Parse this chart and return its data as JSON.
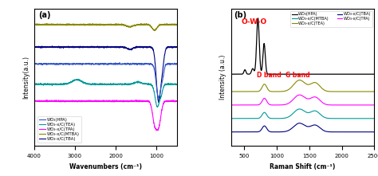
{
  "panel_a": {
    "title": "(a)",
    "xlabel": "Wavenumbers (cm⁻¹)",
    "ylabel": "Intensity(a.u.)",
    "xticks": [
      4000,
      3000,
      2000,
      1000
    ],
    "series": [
      {
        "label": "WO₃(HPA)",
        "color": "#3355cc"
      },
      {
        "label": "WO₃-x/C(TEA)",
        "color": "#009999"
      },
      {
        "label": "WO₃-x/C(TPA)",
        "color": "#ff00ff"
      },
      {
        "label": "WO₃-x/C(MTBA)",
        "color": "#888800"
      },
      {
        "label": "WO₃-x/C(TBA)",
        "color": "#000080"
      }
    ]
  },
  "panel_b": {
    "title": "(b)",
    "xlabel": "Raman Shift (cm⁻¹)",
    "ylabel": "Intensity (a.u.)",
    "xticks": [
      500,
      1000,
      1500,
      2000,
      2500
    ],
    "label_owo": "O-W-O",
    "label_dg": "D band  G band",
    "legend": [
      {
        "label": "WO₃(HPA)",
        "color": "#000000"
      },
      {
        "label": "WO₃-x/C(MTBA)",
        "color": "#009999"
      },
      {
        "label": "WO₃-x/C(TEA)",
        "color": "#888800"
      },
      {
        "label": "WO₃-x/C(TBA)",
        "color": "#000080"
      },
      {
        "label": "WO₃-x/C(TPA)",
        "color": "#ff00ff"
      }
    ]
  }
}
